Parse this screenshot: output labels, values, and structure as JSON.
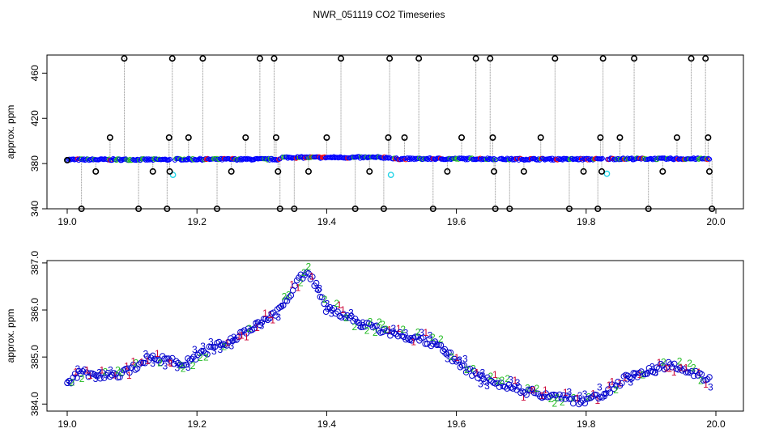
{
  "title": "NWR_051119  CO2 Timeseries",
  "colors": {
    "outlier": "#000000",
    "blue": "#0000ff",
    "cyan": "#22d3e6",
    "red": "#ff0000",
    "green": "#22bb22",
    "stem": "#888888",
    "series1": "#cc0033",
    "series2": "#22bb22",
    "series3": "#0000cc"
  },
  "chart_data": [
    {
      "type": "scatter",
      "ylabel": "approx. ppm",
      "xlabel": "",
      "xlim": [
        19.0,
        20.0
      ],
      "ylim": [
        340,
        476
      ],
      "x_ticks": [
        "19.0",
        "19.2",
        "19.4",
        "19.6",
        "19.8",
        "20.0"
      ],
      "y_ticks": [
        "340",
        "380",
        "420",
        "460"
      ],
      "grid": false,
      "baseline_segments": [
        {
          "x_start": 19.0,
          "x_end": 19.158,
          "y": 383.5
        },
        {
          "x_start": 19.166,
          "x_end": 19.328,
          "y": 383.8
        },
        {
          "x_start": 19.332,
          "x_end": 19.497,
          "y": 385.4
        },
        {
          "x_start": 19.501,
          "x_end": 19.661,
          "y": 384.2
        },
        {
          "x_start": 19.667,
          "x_end": 19.825,
          "y": 383.9
        },
        {
          "x_start": 19.833,
          "x_end": 19.99,
          "y": 384.2
        }
      ],
      "cyan_points": [
        {
          "x": 19.163,
          "y": 370
        },
        {
          "x": 19.499,
          "y": 370
        },
        {
          "x": 19.832,
          "y": 371
        }
      ],
      "outliers": [
        {
          "x": 19.0,
          "y": 383
        },
        {
          "x": 19.022,
          "y": 340
        },
        {
          "x": 19.044,
          "y": 373
        },
        {
          "x": 19.066,
          "y": 403
        },
        {
          "x": 19.088,
          "y": 473
        },
        {
          "x": 19.11,
          "y": 340
        },
        {
          "x": 19.132,
          "y": 373
        },
        {
          "x": 19.154,
          "y": 340
        },
        {
          "x": 19.157,
          "y": 403
        },
        {
          "x": 19.158,
          "y": 373
        },
        {
          "x": 19.162,
          "y": 473
        },
        {
          "x": 19.187,
          "y": 403
        },
        {
          "x": 19.209,
          "y": 473
        },
        {
          "x": 19.231,
          "y": 340
        },
        {
          "x": 19.253,
          "y": 373
        },
        {
          "x": 19.275,
          "y": 403
        },
        {
          "x": 19.297,
          "y": 473
        },
        {
          "x": 19.319,
          "y": 473
        },
        {
          "x": 19.322,
          "y": 403
        },
        {
          "x": 19.325,
          "y": 373
        },
        {
          "x": 19.328,
          "y": 340
        },
        {
          "x": 19.35,
          "y": 340
        },
        {
          "x": 19.372,
          "y": 373
        },
        {
          "x": 19.4,
          "y": 403
        },
        {
          "x": 19.422,
          "y": 473
        },
        {
          "x": 19.444,
          "y": 340
        },
        {
          "x": 19.466,
          "y": 373
        },
        {
          "x": 19.488,
          "y": 340
        },
        {
          "x": 19.495,
          "y": 403
        },
        {
          "x": 19.497,
          "y": 473
        },
        {
          "x": 19.52,
          "y": 403
        },
        {
          "x": 19.542,
          "y": 473
        },
        {
          "x": 19.564,
          "y": 340
        },
        {
          "x": 19.586,
          "y": 373
        },
        {
          "x": 19.608,
          "y": 403
        },
        {
          "x": 19.63,
          "y": 473
        },
        {
          "x": 19.652,
          "y": 473
        },
        {
          "x": 19.656,
          "y": 403
        },
        {
          "x": 19.658,
          "y": 373
        },
        {
          "x": 19.66,
          "y": 340
        },
        {
          "x": 19.682,
          "y": 340
        },
        {
          "x": 19.704,
          "y": 373
        },
        {
          "x": 19.73,
          "y": 403
        },
        {
          "x": 19.752,
          "y": 473
        },
        {
          "x": 19.774,
          "y": 340
        },
        {
          "x": 19.796,
          "y": 373
        },
        {
          "x": 19.818,
          "y": 340
        },
        {
          "x": 19.822,
          "y": 403
        },
        {
          "x": 19.824,
          "y": 373
        },
        {
          "x": 19.826,
          "y": 473
        },
        {
          "x": 19.852,
          "y": 403
        },
        {
          "x": 19.874,
          "y": 473
        },
        {
          "x": 19.896,
          "y": 340
        },
        {
          "x": 19.918,
          "y": 373
        },
        {
          "x": 19.94,
          "y": 403
        },
        {
          "x": 19.962,
          "y": 473
        },
        {
          "x": 19.984,
          "y": 473
        },
        {
          "x": 19.988,
          "y": 403
        },
        {
          "x": 19.99,
          "y": 373
        },
        {
          "x": 19.994,
          "y": 340
        }
      ]
    },
    {
      "type": "scatter",
      "ylabel": "approx. ppm",
      "xlabel": "",
      "xlim": [
        19.0,
        20.0
      ],
      "ylim": [
        383.85,
        387.05
      ],
      "x_ticks": [
        "19.0",
        "19.2",
        "19.4",
        "19.6",
        "19.8",
        "20.0"
      ],
      "y_ticks": [
        "384.0",
        "385.0",
        "386.0",
        "387.0"
      ],
      "grid": false,
      "series_markers": [
        "1",
        "2",
        "3"
      ],
      "profile": [
        [
          19.0,
          384.4
        ],
        [
          19.02,
          384.7
        ],
        [
          19.05,
          384.6
        ],
        [
          19.08,
          384.6
        ],
        [
          19.1,
          384.75
        ],
        [
          19.12,
          384.95
        ],
        [
          19.15,
          384.95
        ],
        [
          19.18,
          384.85
        ],
        [
          19.2,
          385.0
        ],
        [
          19.22,
          385.15
        ],
        [
          19.25,
          385.35
        ],
        [
          19.28,
          385.6
        ],
        [
          19.3,
          385.75
        ],
        [
          19.33,
          386.0
        ],
        [
          19.35,
          386.5
        ],
        [
          19.37,
          386.85
        ],
        [
          19.385,
          386.5
        ],
        [
          19.4,
          386.0
        ],
        [
          19.43,
          385.9
        ],
        [
          19.45,
          385.7
        ],
        [
          19.5,
          385.5
        ],
        [
          19.55,
          385.35
        ],
        [
          19.58,
          385.2
        ],
        [
          19.6,
          384.9
        ],
        [
          19.63,
          384.6
        ],
        [
          19.66,
          384.45
        ],
        [
          19.7,
          384.3
        ],
        [
          19.75,
          384.15
        ],
        [
          19.8,
          384.05
        ],
        [
          19.83,
          384.25
        ],
        [
          19.86,
          384.55
        ],
        [
          19.9,
          384.7
        ],
        [
          19.93,
          384.85
        ],
        [
          19.96,
          384.7
        ],
        [
          19.99,
          384.5
        ]
      ]
    }
  ]
}
